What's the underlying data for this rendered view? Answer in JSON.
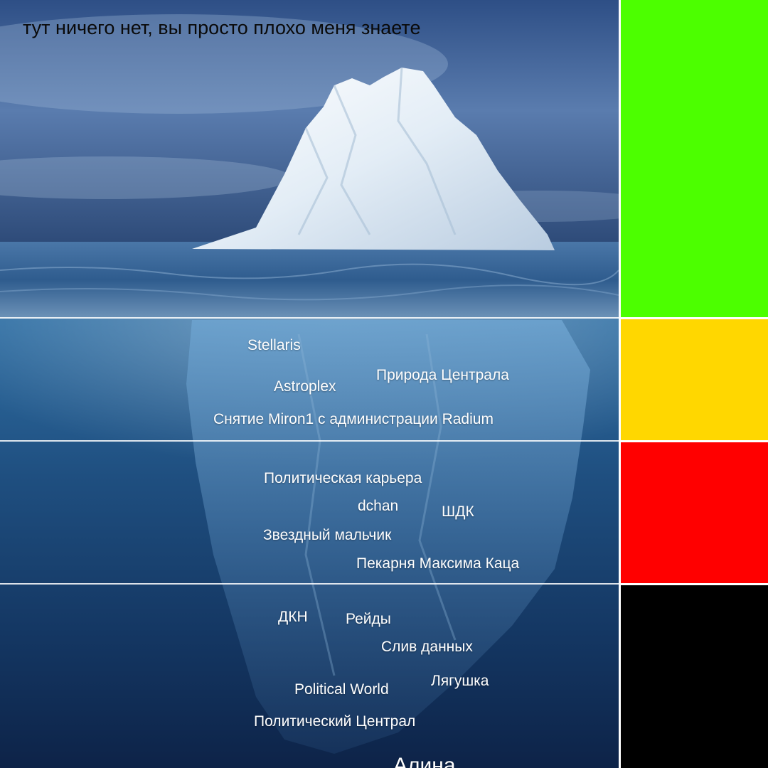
{
  "title": "тут ничего нет, вы просто плохо меня знаете",
  "tiers": [
    {
      "color": "#4cff00",
      "items": []
    },
    {
      "color": "#ffd700",
      "items": [
        "Stellaris",
        "Astroplex",
        "Природа Централа",
        "Снятие Miron1 с администрации Radium"
      ]
    },
    {
      "color": "#ff0000",
      "items": [
        "Политическая карьера",
        "dchan",
        "ШДК",
        "Звездный мальчик",
        "Пекарня Максима Каца"
      ]
    },
    {
      "color": "#000000",
      "items": [
        "ДКН",
        "Рейды",
        "Слив данных",
        "Political World",
        "Лягушка",
        "Политический Централ",
        "Алина"
      ]
    }
  ]
}
